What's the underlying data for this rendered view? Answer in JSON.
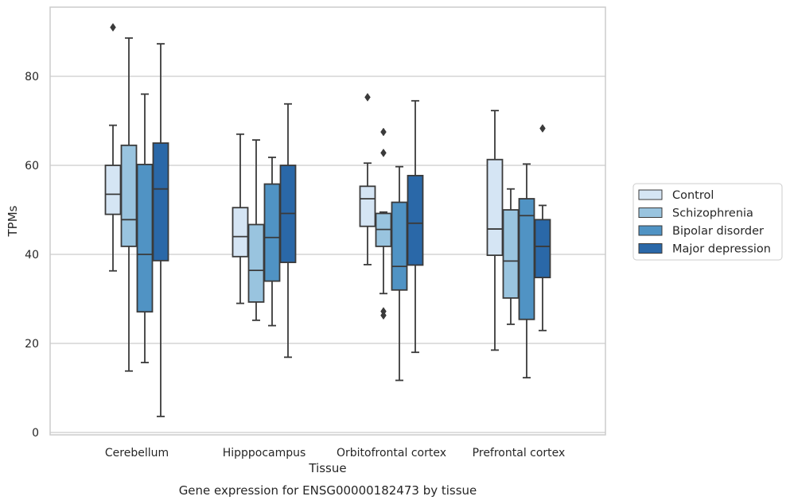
{
  "chart_data": {
    "type": "boxplot",
    "xlabel": "Tissue",
    "ylabel": "TPMs",
    "caption": "Gene expression for ENSG00000182473 by tissue",
    "ylim": [
      0,
      95
    ],
    "yticks": [
      0,
      20,
      40,
      60,
      80
    ],
    "grid": "horizontal",
    "legend_position": "right",
    "categories": [
      "Cerebellum",
      "Hipppocampus",
      "Orbitofrontal cortex",
      "Prefrontal cortex"
    ],
    "series": [
      {
        "name": "Control",
        "color": "#d5e5f4",
        "boxes": [
          {
            "whislo": 36.3,
            "q1": 49.0,
            "med": 53.5,
            "q3": 60.0,
            "whishi": 69.0,
            "fliers": [
              91.0
            ]
          },
          {
            "whislo": 29.0,
            "q1": 39.5,
            "med": 44.0,
            "q3": 50.5,
            "whishi": 67.0,
            "fliers": []
          },
          {
            "whislo": 37.7,
            "q1": 46.3,
            "med": 52.5,
            "q3": 55.3,
            "whishi": 60.5,
            "fliers": [
              75.3
            ]
          },
          {
            "whislo": 18.5,
            "q1": 39.8,
            "med": 45.7,
            "q3": 61.3,
            "whishi": 72.3,
            "fliers": []
          }
        ]
      },
      {
        "name": "Schizophrenia",
        "color": "#99c4df",
        "boxes": [
          {
            "whislo": 13.8,
            "q1": 41.8,
            "med": 47.8,
            "q3": 64.5,
            "whishi": 88.6,
            "fliers": []
          },
          {
            "whislo": 25.2,
            "q1": 29.3,
            "med": 36.4,
            "q3": 46.7,
            "whishi": 65.7,
            "fliers": []
          },
          {
            "whislo": 31.2,
            "q1": 41.8,
            "med": 45.6,
            "q3": 49.2,
            "whishi": 49.5,
            "fliers": [
              67.5,
              62.8,
              27.2,
              26.3
            ]
          },
          {
            "whislo": 24.3,
            "q1": 30.2,
            "med": 38.5,
            "q3": 50.0,
            "whishi": 54.7,
            "fliers": []
          }
        ]
      },
      {
        "name": "Bipolar disorder",
        "color": "#5093c4",
        "boxes": [
          {
            "whislo": 15.7,
            "q1": 27.1,
            "med": 40.0,
            "q3": 60.2,
            "whishi": 76.0,
            "fliers": []
          },
          {
            "whislo": 24.0,
            "q1": 34.0,
            "med": 43.8,
            "q3": 55.8,
            "whishi": 61.8,
            "fliers": []
          },
          {
            "whislo": 11.7,
            "q1": 32.0,
            "med": 37.3,
            "q3": 51.7,
            "whishi": 59.7,
            "fliers": []
          },
          {
            "whislo": 12.3,
            "q1": 25.4,
            "med": 48.7,
            "q3": 52.5,
            "whishi": 60.3,
            "fliers": []
          }
        ]
      },
      {
        "name": "Major depression",
        "color": "#2a68a8",
        "boxes": [
          {
            "whislo": 3.6,
            "q1": 38.6,
            "med": 54.7,
            "q3": 65.0,
            "whishi": 87.3,
            "fliers": []
          },
          {
            "whislo": 16.9,
            "q1": 38.2,
            "med": 49.2,
            "q3": 60.0,
            "whishi": 73.8,
            "fliers": []
          },
          {
            "whislo": 18.0,
            "q1": 37.6,
            "med": 47.0,
            "q3": 57.7,
            "whishi": 74.5,
            "fliers": []
          },
          {
            "whislo": 22.9,
            "q1": 34.8,
            "med": 41.8,
            "q3": 47.8,
            "whishi": 51.0,
            "fliers": [
              68.3
            ]
          }
        ]
      }
    ]
  }
}
